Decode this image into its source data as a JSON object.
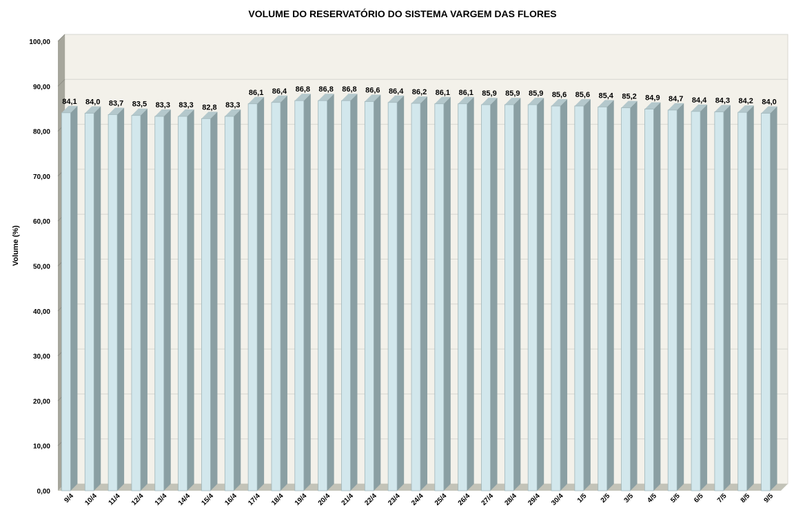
{
  "chart_data": {
    "type": "bar",
    "title": "VOLUME DO RESERVATÓRIO DO SISTEMA VARGEM DAS FLORES",
    "xlabel": "",
    "ylabel": "Volume (%)",
    "ylim": [
      0,
      100
    ],
    "yticks": [
      "0,00",
      "10,00",
      "20,00",
      "30,00",
      "40,00",
      "50,00",
      "60,00",
      "70,00",
      "80,00",
      "90,00",
      "100,00"
    ],
    "grid": true,
    "legend": "none",
    "categories": [
      "9/4",
      "10/4",
      "11/4",
      "12/4",
      "13/4",
      "14/4",
      "15/4",
      "16/4",
      "17/4",
      "18/4",
      "19/4",
      "20/4",
      "21/4",
      "22/4",
      "23/4",
      "24/4",
      "25/4",
      "26/4",
      "27/4",
      "28/4",
      "29/4",
      "30/4",
      "1/5",
      "2/5",
      "3/5",
      "4/5",
      "5/5",
      "6/5",
      "7/5",
      "8/5",
      "9/5"
    ],
    "values": [
      84.1,
      84.0,
      83.7,
      83.5,
      83.3,
      83.3,
      82.8,
      83.3,
      86.1,
      86.4,
      86.8,
      86.8,
      86.8,
      86.6,
      86.4,
      86.2,
      86.1,
      86.1,
      85.9,
      85.9,
      85.9,
      85.6,
      85.6,
      85.4,
      85.2,
      84.9,
      84.7,
      84.4,
      84.3,
      84.2,
      84.0
    ],
    "data_labels": [
      "84,1",
      "84,0",
      "83,7",
      "83,5",
      "83,3",
      "83,3",
      "82,8",
      "83,3",
      "86,1",
      "86,4",
      "86,8",
      "86,8",
      "86,8",
      "86,6",
      "86,4",
      "86,2",
      "86,1",
      "86,1",
      "85,9",
      "85,9",
      "85,9",
      "85,6",
      "85,6",
      "85,4",
      "85,2",
      "84,9",
      "84,7",
      "84,4",
      "84,3",
      "84,2",
      "84,0"
    ],
    "colors": {
      "bar_front": "#d2e7ec",
      "bar_side": "#8a9fa3",
      "bar_top": "#b4c8cc",
      "bar_outline": "#9fb5b9",
      "plot_bg": "#f3f1ea",
      "wall_side": "#a6a69c",
      "floor": "#c3c3b8",
      "gridline": "#d6d6d0"
    }
  }
}
